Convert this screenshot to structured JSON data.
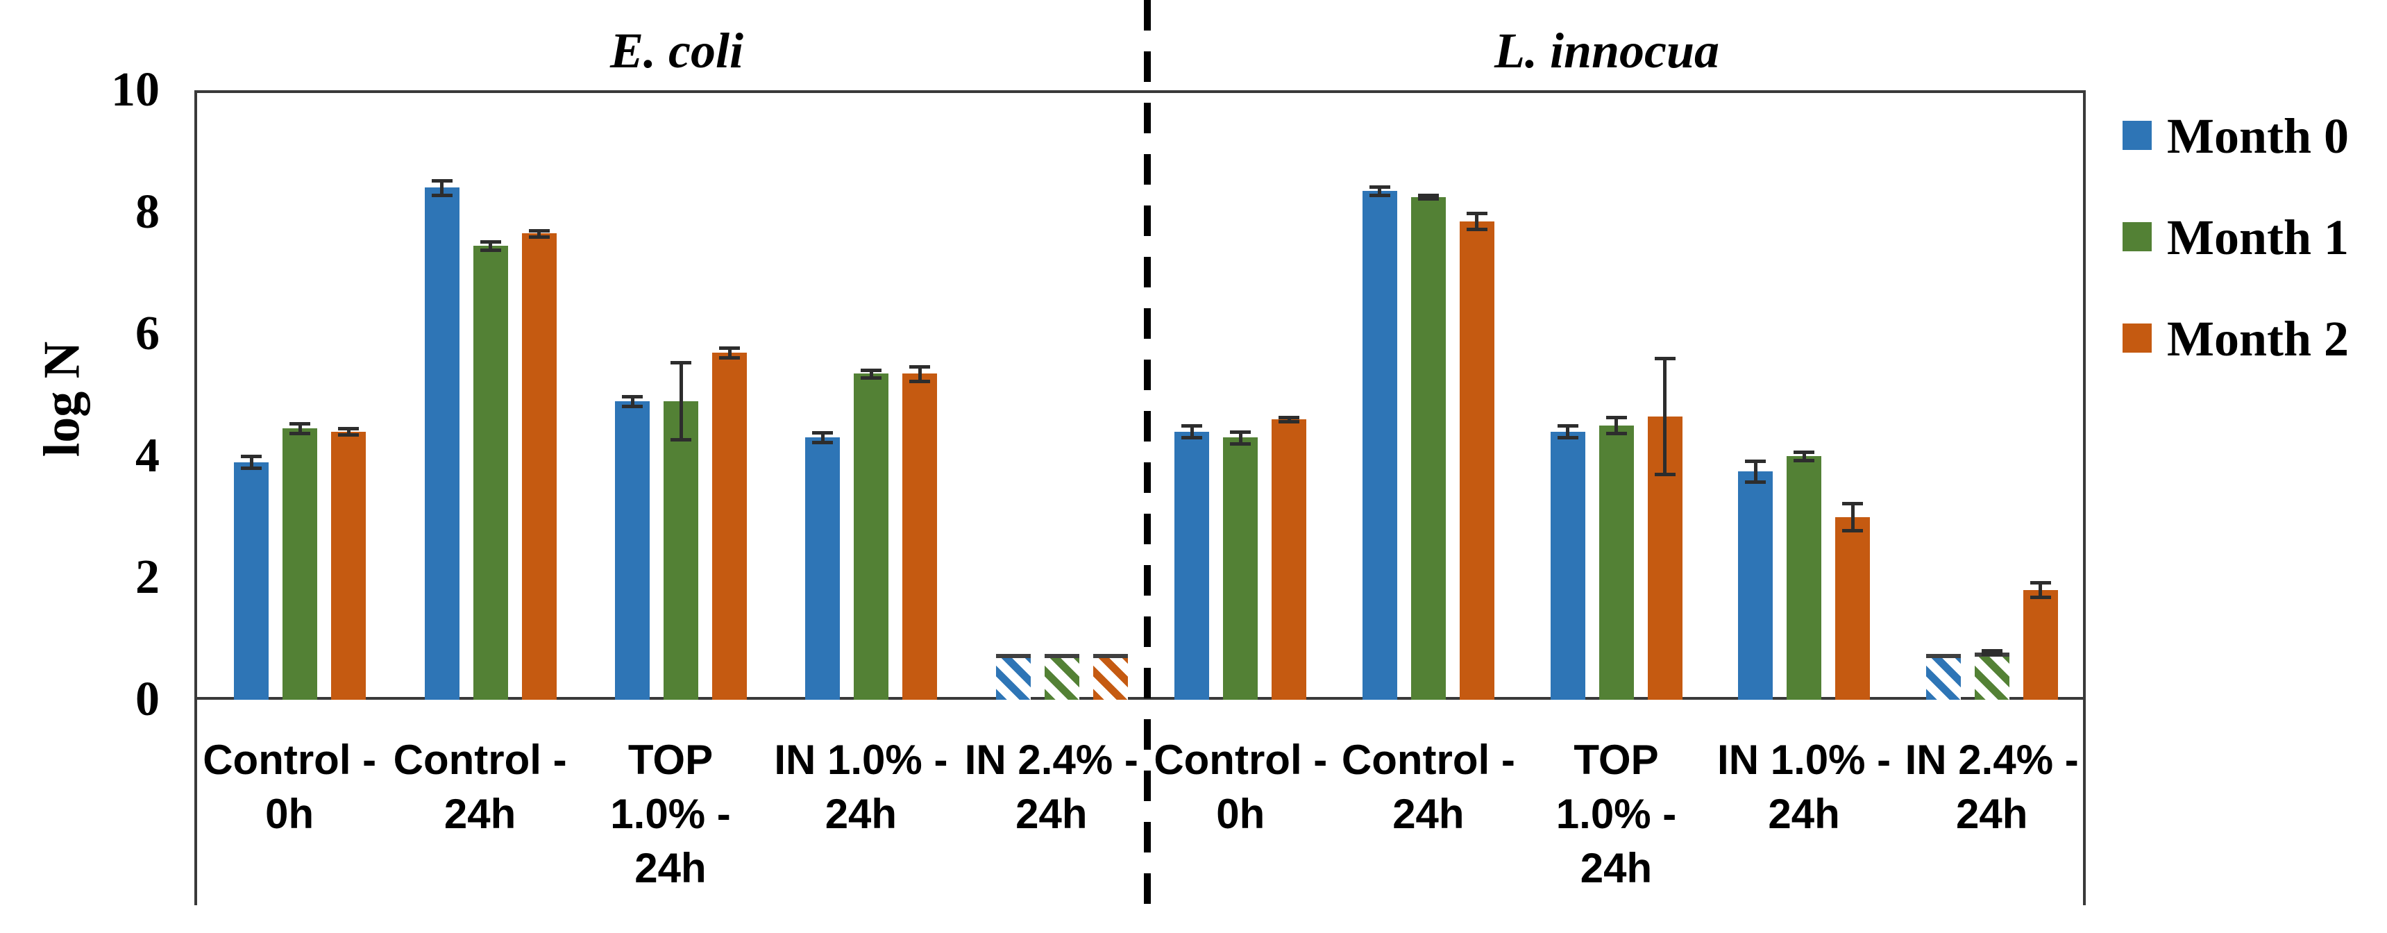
{
  "y_axis": {
    "label": "log N",
    "ticks": [
      "0",
      "2",
      "4",
      "6",
      "8",
      "10"
    ],
    "min": 0,
    "max": 10
  },
  "legend": {
    "items": [
      {
        "label": "Month 0",
        "color": "#2E75B6"
      },
      {
        "label": "Month 1",
        "color": "#538135"
      },
      {
        "label": "Month 2",
        "color": "#C55A11"
      }
    ]
  },
  "colors": {
    "month0": "#2E75B6",
    "month1": "#538135",
    "month2": "#C55A11",
    "axis": "#3a3a3a",
    "error_bar": "#2d2d2d",
    "divider": "#000000"
  },
  "chart_data": {
    "type": "bar",
    "title": "",
    "xlabel": "",
    "ylabel": "log N",
    "ylim": [
      0,
      10
    ],
    "ytick_step": 2,
    "grid": false,
    "legend_position": "right-outside",
    "error_bars": true,
    "hatched_bars_note": "bars shown with diagonal hatching instead of solid fill",
    "categories": [
      "Control -\n0h",
      "Control -\n24h",
      "TOP\n1.0% -\n24h",
      "IN 1.0% -\n24h",
      "IN 2.4% -\n24h"
    ],
    "panels": [
      {
        "title": "E. coli",
        "series": [
          {
            "name": "Month 0",
            "color": "#2E75B6",
            "values": [
              3.9,
              8.4,
              4.9,
              4.3,
              0.75
            ],
            "errors": [
              0.1,
              0.12,
              0.08,
              0.08,
              0
            ],
            "hatched": [
              false,
              false,
              false,
              false,
              true
            ]
          },
          {
            "name": "Month 1",
            "color": "#538135",
            "values": [
              4.45,
              7.45,
              4.9,
              5.35,
              0.75
            ],
            "errors": [
              0.08,
              0.07,
              0.63,
              0.06,
              0
            ],
            "hatched": [
              false,
              false,
              false,
              false,
              true
            ]
          },
          {
            "name": "Month 2",
            "color": "#C55A11",
            "values": [
              4.4,
              7.65,
              5.7,
              5.35,
              0.75
            ],
            "errors": [
              0.05,
              0.05,
              0.08,
              0.12,
              0
            ],
            "hatched": [
              false,
              false,
              false,
              false,
              true
            ]
          }
        ]
      },
      {
        "title": "L. innocua",
        "series": [
          {
            "name": "Month 0",
            "color": "#2E75B6",
            "values": [
              4.4,
              8.35,
              4.4,
              3.75,
              0.75
            ],
            "errors": [
              0.1,
              0.07,
              0.1,
              0.17,
              0
            ],
            "hatched": [
              false,
              false,
              false,
              false,
              true
            ]
          },
          {
            "name": "Month 1",
            "color": "#538135",
            "values": [
              4.3,
              8.25,
              4.5,
              4.0,
              0.78
            ],
            "errors": [
              0.1,
              0.03,
              0.13,
              0.07,
              0.03
            ],
            "hatched": [
              false,
              false,
              false,
              false,
              true
            ]
          },
          {
            "name": "Month 2",
            "color": "#C55A11",
            "values": [
              4.6,
              7.85,
              4.65,
              3.0,
              1.8
            ],
            "errors": [
              0.03,
              0.13,
              0.95,
              0.22,
              0.12
            ],
            "hatched": [
              false,
              false,
              false,
              false,
              false
            ]
          }
        ]
      }
    ]
  }
}
